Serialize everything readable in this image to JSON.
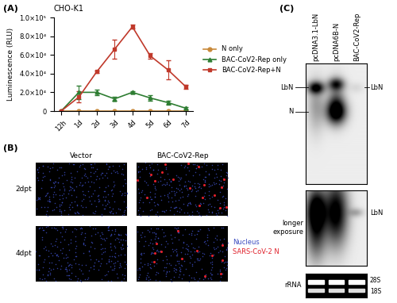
{
  "chart_data": {
    "type": "line",
    "label": "(A)",
    "title": "CHO-K1",
    "y_label": "Luminescence (RLU)",
    "categories": [
      "12h",
      "1d",
      "2d",
      "3d",
      "4d",
      "5d",
      "6d",
      "7d"
    ],
    "ylim": [
      0,
      100000
    ],
    "yticks": [
      0,
      {
        "value": 20000,
        "label": "2.0×10⁴"
      },
      {
        "value": 40000,
        "label": "4.0×10⁴"
      },
      {
        "value": 60000,
        "label": "6.0×10⁴"
      },
      {
        "value": 80000,
        "label": "8.0×10⁴"
      },
      {
        "value": 100000,
        "label": "1.0×10⁵"
      }
    ],
    "legend": "right",
    "series": [
      {
        "name": "N only",
        "color": "#c8893a",
        "marker": "circle",
        "values": [
          0,
          0,
          0,
          0,
          0,
          0,
          0,
          0
        ],
        "errors": [
          0,
          0,
          0,
          0,
          0,
          0,
          0,
          0
        ]
      },
      {
        "name": "BAC-CoV2-Rep only",
        "color": "#2e7d32",
        "marker": "triangle",
        "values": [
          0,
          20000,
          20000,
          13000,
          20000,
          14000,
          9000,
          3000
        ],
        "errors": [
          0,
          7000,
          3000,
          2000,
          1000,
          3000,
          2000,
          1000
        ]
      },
      {
        "name": "BAC-CoV2-Rep+N",
        "color": "#c0392b",
        "marker": "square",
        "values": [
          0,
          15000,
          42000,
          66000,
          90000,
          59000,
          44000,
          26000
        ],
        "errors": [
          0,
          6000,
          1000,
          10000,
          2000,
          3000,
          10000,
          2000
        ]
      }
    ]
  },
  "panel_b": {
    "label": "(B)",
    "columns": [
      "Vector",
      "BAC-CoV2-Rep"
    ],
    "rows": [
      "2dpt",
      "4dpt"
    ],
    "channels": [
      {
        "name": "Nucleus",
        "color": "#3b4cc0"
      },
      {
        "name": "SARS-CoV-2 N",
        "color": "#e0202a"
      }
    ]
  },
  "panel_c": {
    "label": "(C)",
    "lanes": [
      "pcDNA3.1-LbN",
      "pcDNA6B-N",
      "BAC-CoV2-Rep"
    ],
    "main_blot": {
      "left_labels": [
        "LbN",
        "N"
      ],
      "right_label": "LbN"
    },
    "long_exposure": {
      "label": "longer\nexposure",
      "right_label": "LbN"
    },
    "loading": {
      "label": "rRNA",
      "bands": [
        "28S",
        "18S"
      ]
    }
  }
}
